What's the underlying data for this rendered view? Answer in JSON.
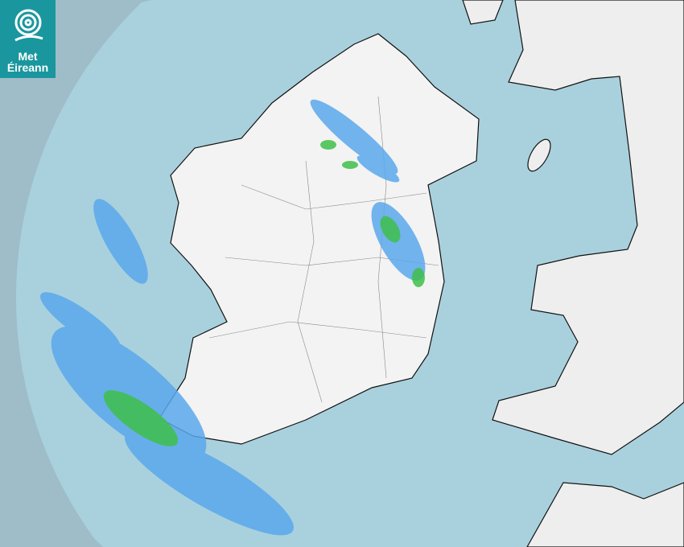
{
  "logo": {
    "line1": "Met",
    "line2": "Éireann",
    "icon": "swirl-logo-icon"
  },
  "colors": {
    "outside_radar": "#9ebdc8",
    "radar_range": "#a9d1dd",
    "sea": "#a9d1dd",
    "land": "#f2f2f2",
    "rain_light": "#5aa8ec",
    "rain_moderate": "#3fc04a",
    "logo_bg": "#1a969e"
  }
}
